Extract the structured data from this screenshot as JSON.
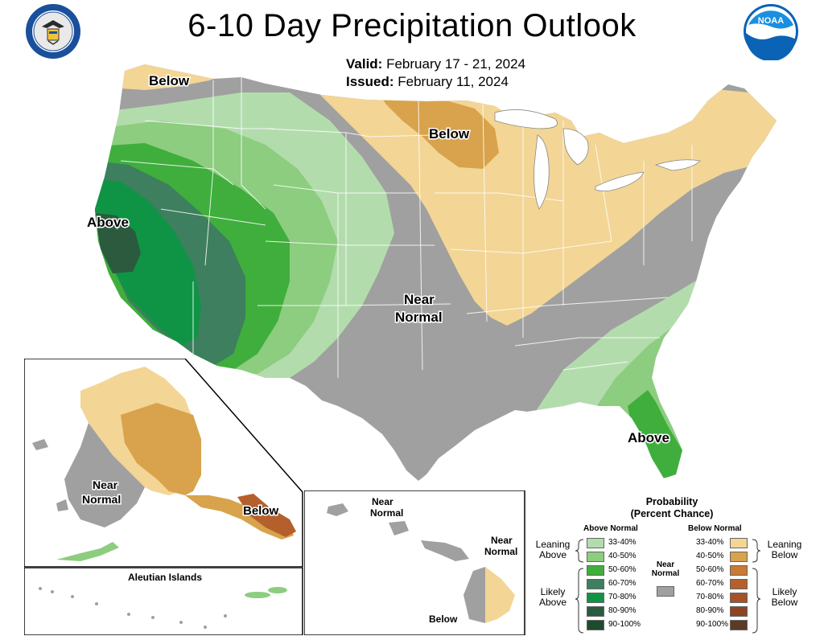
{
  "header": {
    "title": "6-10 Day Precipitation Outlook",
    "valid_label": "Valid:",
    "valid_value": "February 17 - 21, 2024",
    "issued_label": "Issued:",
    "issued_value": "February 11, 2024"
  },
  "map_labels": {
    "conus_nw_below": "Below",
    "conus_north_below": "Below",
    "conus_west_above": "Above",
    "conus_near": "Near",
    "conus_normal": "Normal",
    "conus_florida_above": "Above",
    "alaska_near": "Near",
    "alaska_normal": "Normal",
    "alaska_below": "Below",
    "aleutian_title": "Aleutian Islands",
    "hawaii_near1": "Near",
    "hawaii_normal1": "Normal",
    "hawaii_near2": "Near",
    "hawaii_normal2": "Normal",
    "hawaii_below": "Below"
  },
  "legend": {
    "title_line1": "Probability",
    "title_line2": "(Percent Chance)",
    "above_header": "Above Normal",
    "below_header": "Below Normal",
    "near_label_1": "Near",
    "near_label_2": "Normal",
    "leaning_above_1": "Leaning",
    "leaning_above_2": "Above",
    "likely_above_1": "Likely",
    "likely_above_2": "Above",
    "leaning_below_1": "Leaning",
    "leaning_below_2": "Below",
    "likely_below_1": "Likely",
    "likely_below_2": "Below",
    "above_bins": [
      "33-40%",
      "40-50%",
      "50-60%",
      "60-70%",
      "70-80%",
      "80-90%",
      "90-100%"
    ],
    "below_bins": [
      "33-40%",
      "40-50%",
      "50-60%",
      "60-70%",
      "70-80%",
      "80-90%",
      "90-100%"
    ],
    "above_colors": [
      "#b3dcad",
      "#8ccd7f",
      "#3fae3c",
      "#3d7f5e",
      "#0f9446",
      "#2b5a3f",
      "#1e4b2e"
    ],
    "below_colors": [
      "#f3d595",
      "#d8a34c",
      "#c97a35",
      "#b5602c",
      "#a5522a",
      "#8e4325",
      "#5b3b25"
    ],
    "near_color": "#a0a0a0"
  },
  "logos": {
    "left": "department-of-commerce-seal",
    "right": "noaa-logo"
  }
}
